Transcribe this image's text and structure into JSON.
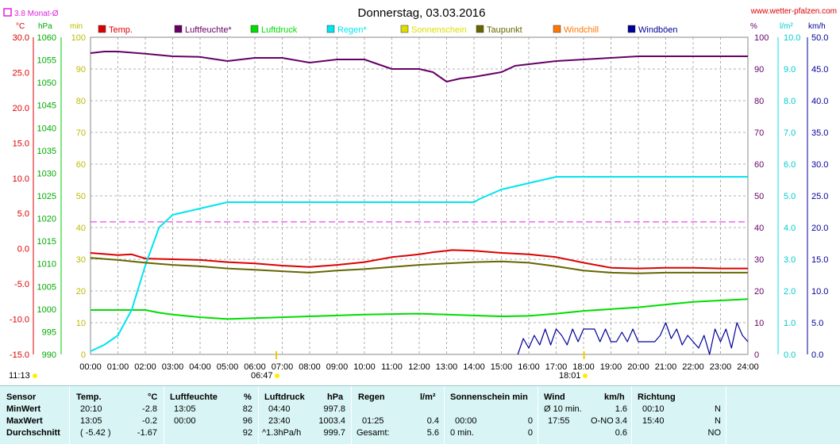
{
  "header": {
    "title": "Donnerstag, 03.03.2016",
    "site": "www.wetter-pfalzen.com",
    "monat_label": "3.8 Monat-Ø"
  },
  "axes": {
    "temp_unit": "°C",
    "pressure_unit": "hPa",
    "sun_unit": "min",
    "humidity_unit": "%",
    "rain_unit": "l/m²",
    "wind_unit": "km/h",
    "temp_ticks": [
      "30.0",
      "25.0",
      "20.0",
      "15.0",
      "10.0",
      "5.0",
      "0.0",
      "-5.0",
      "-10.0",
      "-15.0"
    ],
    "pressure_ticks": [
      "1060",
      "1055",
      "1050",
      "1045",
      "1040",
      "1035",
      "1030",
      "1025",
      "1020",
      "1015",
      "1010",
      "1005",
      "1000",
      "995",
      "990"
    ],
    "sun_ticks": [
      "100",
      "90",
      "80",
      "70",
      "60",
      "50",
      "40",
      "30",
      "20",
      "10",
      "0"
    ],
    "humidity_ticks": [
      "100",
      "90",
      "80",
      "70",
      "60",
      "50",
      "40",
      "30",
      "20",
      "10",
      "0"
    ],
    "rain_ticks": [
      "10.0",
      "9.0",
      "8.0",
      "7.0",
      "6.0",
      "5.0",
      "4.0",
      "3.0",
      "2.0",
      "1.0",
      "0.0"
    ],
    "wind_ticks": [
      "50.0",
      "45.0",
      "40.0",
      "35.0",
      "30.0",
      "25.0",
      "20.0",
      "15.0",
      "10.0",
      "5.0",
      "0.0"
    ],
    "time_ticks": [
      "00:00",
      "01:00",
      "02:00",
      "03:00",
      "04:00",
      "05:00",
      "06:00",
      "07:00",
      "08:00",
      "09:00",
      "10:00",
      "11:00",
      "12:00",
      "13:00",
      "14:00",
      "15:00",
      "16:00",
      "17:00",
      "18:00",
      "19:00",
      "20:00",
      "21:00",
      "22:00",
      "23:00",
      "24:00"
    ]
  },
  "sun_times": {
    "daylength": "11:13",
    "sunrise": "06:47",
    "sunset": "18:01"
  },
  "colors": {
    "temp": "#dd0000",
    "humidity": "#660066",
    "pressure": "#00dd00",
    "rain": "#00e5ee",
    "sunshine": "#dddd00",
    "dewpoint": "#666600",
    "windchill": "#ff7700",
    "gusts": "#000099",
    "monat": "#dd22dd"
  },
  "chart_data": {
    "type": "line",
    "title": "Donnerstag, 03.03.2016",
    "x_unit": "hours",
    "xlim": [
      0,
      24
    ],
    "monat_mean_temp": 3.8,
    "series": [
      {
        "name": "Temp.",
        "axis": "temp",
        "unit": "°C",
        "points": [
          [
            0,
            -0.6
          ],
          [
            1,
            -0.9
          ],
          [
            1.5,
            -0.8
          ],
          [
            2,
            -1.4
          ],
          [
            3,
            -1.5
          ],
          [
            4,
            -1.6
          ],
          [
            5,
            -1.9
          ],
          [
            6,
            -2.1
          ],
          [
            7,
            -2.4
          ],
          [
            8,
            -2.6
          ],
          [
            9,
            -2.3
          ],
          [
            10,
            -1.9
          ],
          [
            11,
            -1.2
          ],
          [
            12,
            -0.8
          ],
          [
            12.5,
            -0.5
          ],
          [
            13,
            -0.3
          ],
          [
            13.2,
            -0.2
          ],
          [
            14,
            -0.3
          ],
          [
            15,
            -0.6
          ],
          [
            16,
            -0.8
          ],
          [
            17,
            -1.2
          ],
          [
            18,
            -2.0
          ],
          [
            19,
            -2.7
          ],
          [
            20,
            -2.8
          ],
          [
            21,
            -2.7
          ],
          [
            22,
            -2.7
          ],
          [
            23,
            -2.8
          ],
          [
            24,
            -2.8
          ]
        ]
      },
      {
        "name": "Luftfeuchte*",
        "axis": "humidity",
        "unit": "%",
        "points": [
          [
            0,
            95
          ],
          [
            0.5,
            95.5
          ],
          [
            1,
            95.5
          ],
          [
            2,
            94.8
          ],
          [
            3,
            94
          ],
          [
            4,
            93.8
          ],
          [
            5,
            92.5
          ],
          [
            6,
            93.5
          ],
          [
            7,
            93.5
          ],
          [
            8,
            92
          ],
          [
            9,
            93
          ],
          [
            10,
            93
          ],
          [
            11,
            90
          ],
          [
            12,
            90
          ],
          [
            12.5,
            89
          ],
          [
            13,
            86
          ],
          [
            13.5,
            87
          ],
          [
            14,
            87.5
          ],
          [
            15,
            89
          ],
          [
            15.5,
            91
          ],
          [
            16,
            91.5
          ],
          [
            17,
            92.5
          ],
          [
            18,
            93
          ],
          [
            19,
            93.5
          ],
          [
            20,
            94
          ],
          [
            21,
            94
          ],
          [
            22,
            94
          ],
          [
            23,
            94
          ],
          [
            24,
            94
          ]
        ]
      },
      {
        "name": "Luftdruck",
        "axis": "pressure",
        "unit": "hPa",
        "points": [
          [
            0,
            999.8
          ],
          [
            1,
            999.8
          ],
          [
            2,
            999.8
          ],
          [
            2.5,
            999.2
          ],
          [
            3,
            998.8
          ],
          [
            4,
            998.2
          ],
          [
            5,
            997.8
          ],
          [
            6,
            998.0
          ],
          [
            7,
            998.2
          ],
          [
            8,
            998.4
          ],
          [
            9,
            998.6
          ],
          [
            10,
            998.8
          ],
          [
            11,
            998.9
          ],
          [
            12,
            999.0
          ],
          [
            13,
            998.8
          ],
          [
            14,
            998.6
          ],
          [
            15,
            998.4
          ],
          [
            16,
            998.5
          ],
          [
            17,
            999.0
          ],
          [
            18,
            999.6
          ],
          [
            19,
            1000.0
          ],
          [
            20,
            1000.4
          ],
          [
            21,
            1001.0
          ],
          [
            22,
            1001.6
          ],
          [
            23,
            1001.9
          ],
          [
            24,
            1002.2
          ]
        ]
      },
      {
        "name": "Regen*",
        "axis": "rain",
        "unit": "l/m²",
        "points": [
          [
            0,
            0.1
          ],
          [
            0.5,
            0.3
          ],
          [
            1,
            0.6
          ],
          [
            1.5,
            1.4
          ],
          [
            2,
            2.8
          ],
          [
            2.5,
            4.0
          ],
          [
            3,
            4.4
          ],
          [
            4,
            4.6
          ],
          [
            5,
            4.8
          ],
          [
            6,
            4.8
          ],
          [
            7,
            4.8
          ],
          [
            8,
            4.8
          ],
          [
            9,
            4.8
          ],
          [
            10,
            4.8
          ],
          [
            11,
            4.8
          ],
          [
            12,
            4.8
          ],
          [
            13,
            4.8
          ],
          [
            14,
            4.8
          ],
          [
            14.2,
            4.9
          ],
          [
            15,
            5.2
          ],
          [
            15.5,
            5.3
          ],
          [
            16,
            5.4
          ],
          [
            16.5,
            5.5
          ],
          [
            17,
            5.6
          ],
          [
            18,
            5.6
          ],
          [
            19,
            5.6
          ],
          [
            20,
            5.6
          ],
          [
            21,
            5.6
          ],
          [
            22,
            5.6
          ],
          [
            23,
            5.6
          ],
          [
            24,
            5.6
          ]
        ]
      },
      {
        "name": "Taupunkt",
        "axis": "temp",
        "unit": "°C",
        "points": [
          [
            0,
            -1.3
          ],
          [
            1,
            -1.6
          ],
          [
            2,
            -2.0
          ],
          [
            3,
            -2.3
          ],
          [
            4,
            -2.5
          ],
          [
            5,
            -2.8
          ],
          [
            6,
            -3.0
          ],
          [
            7,
            -3.2
          ],
          [
            8,
            -3.4
          ],
          [
            9,
            -3.1
          ],
          [
            10,
            -2.9
          ],
          [
            11,
            -2.6
          ],
          [
            12,
            -2.3
          ],
          [
            13,
            -2.1
          ],
          [
            14,
            -1.9
          ],
          [
            15,
            -1.8
          ],
          [
            16,
            -2.0
          ],
          [
            17,
            -2.5
          ],
          [
            18,
            -3.1
          ],
          [
            19,
            -3.4
          ],
          [
            20,
            -3.5
          ],
          [
            21,
            -3.4
          ],
          [
            22,
            -3.4
          ],
          [
            23,
            -3.4
          ],
          [
            24,
            -3.4
          ]
        ]
      },
      {
        "name": "Windböen",
        "axis": "wind",
        "unit": "km/h",
        "points": [
          [
            15.6,
            0
          ],
          [
            15.8,
            2.5
          ],
          [
            16,
            1
          ],
          [
            16.2,
            3
          ],
          [
            16.4,
            1.5
          ],
          [
            16.6,
            4
          ],
          [
            16.8,
            1.5
          ],
          [
            17,
            4
          ],
          [
            17.2,
            3
          ],
          [
            17.4,
            1.5
          ],
          [
            17.6,
            4
          ],
          [
            17.8,
            2
          ],
          [
            18,
            4
          ],
          [
            18.2,
            4
          ],
          [
            18.4,
            4
          ],
          [
            18.6,
            2
          ],
          [
            18.8,
            4
          ],
          [
            19,
            2
          ],
          [
            19.2,
            2
          ],
          [
            19.4,
            3.5
          ],
          [
            19.6,
            2
          ],
          [
            19.8,
            4
          ],
          [
            20,
            2
          ],
          [
            20.2,
            2
          ],
          [
            20.6,
            2
          ],
          [
            20.8,
            3
          ],
          [
            21,
            5
          ],
          [
            21.2,
            2.5
          ],
          [
            21.4,
            4
          ],
          [
            21.6,
            1.5
          ],
          [
            21.8,
            3
          ],
          [
            22,
            2
          ],
          [
            22.2,
            1
          ],
          [
            22.4,
            3
          ],
          [
            22.6,
            0
          ],
          [
            22.8,
            4
          ],
          [
            23,
            2
          ],
          [
            23.2,
            4
          ],
          [
            23.4,
            1
          ],
          [
            23.6,
            5
          ],
          [
            23.8,
            3
          ],
          [
            24,
            2
          ]
        ]
      }
    ]
  },
  "legend": [
    {
      "label": "Temp.",
      "color": "#dd0000"
    },
    {
      "label": "Luftfeuchte*",
      "color": "#660066"
    },
    {
      "label": "Luftdruck",
      "color": "#00dd00"
    },
    {
      "label": "Regen*",
      "color": "#00e5ee"
    },
    {
      "label": "Sonnenschein",
      "color": "#dddd00"
    },
    {
      "label": "Taupunkt",
      "color": "#666600"
    },
    {
      "label": "Windchill",
      "color": "#ff7700"
    },
    {
      "label": "Windböen",
      "color": "#000099"
    }
  ],
  "table": {
    "sensor": {
      "title": "Sensor",
      "rows": [
        "MinWert",
        "MaxWert",
        "Durchschnitt"
      ]
    },
    "temp": {
      "title": "Temp.",
      "unit": "°C",
      "min_time": "20:10",
      "min_val": "-2.8",
      "max_time": "13:05",
      "max_val": "-0.2",
      "avg_extra": "( -5.42 )",
      "avg_val": "-1.67"
    },
    "hum": {
      "title": "Luftfeuchte",
      "unit": "%",
      "min_time": "13:05",
      "min_val": "82",
      "max_time": "00:00",
      "max_val": "96",
      "avg_val": "92"
    },
    "press": {
      "title": "Luftdruck",
      "unit": "hPa",
      "min_time": "04:40",
      "min_val": "997.8",
      "max_time": "23:40",
      "max_val": "1003.4",
      "avg_extra": "^1.3hPa/h",
      "avg_val": "999.7"
    },
    "rain": {
      "title": "Regen",
      "unit": "l/m²",
      "max_time": "01:25",
      "max_val": "0.4",
      "avg_extra": "Gesamt:",
      "avg_val": "5.6"
    },
    "sun": {
      "title": "Sonnenschein min",
      "max_time": "00:00",
      "max_val": "0",
      "avg_extra": "0 min.",
      "avg_val": "0"
    },
    "wind": {
      "title": "Wind",
      "unit": "km/h",
      "min_time": "Ø 10 min.",
      "min_val": "1.6",
      "max_time": "17:55",
      "max_dir": "O-NO",
      "max_val": "3.4",
      "avg_val": "0.6"
    },
    "dir": {
      "title": "Richtung",
      "min_time": "00:10",
      "min_val": "N",
      "max_time": "15:40",
      "max_val": "N",
      "avg_val": "NO"
    }
  }
}
